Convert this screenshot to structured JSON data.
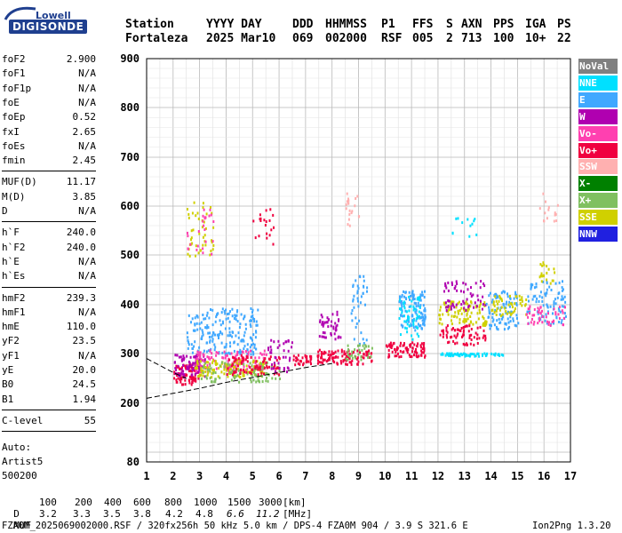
{
  "logo": {
    "top": "Lowell",
    "main": "DIGISONDE"
  },
  "header": {
    "labels": [
      "Station",
      "YYYY DAY",
      "DDD",
      "HHMMSS",
      "P1",
      "FFS",
      "S",
      "AXN",
      "PPS",
      "IGA",
      "PS"
    ],
    "values": [
      "Fortaleza",
      "2025 Mar10",
      "069",
      "002000",
      "RSF",
      "005",
      "2",
      "713",
      "100",
      "10+",
      "22"
    ]
  },
  "params": {
    "group1": [
      {
        "label": "foF2",
        "value": "2.900"
      },
      {
        "label": "foF1",
        "value": "N/A"
      },
      {
        "label": "foF1p",
        "value": "N/A"
      },
      {
        "label": "foE",
        "value": "N/A"
      },
      {
        "label": "foEp",
        "value": "0.52"
      },
      {
        "label": "fxI",
        "value": "2.65"
      },
      {
        "label": "foEs",
        "value": "N/A"
      },
      {
        "label": "fmin",
        "value": "2.45"
      }
    ],
    "group2": [
      {
        "label": "MUF(D)",
        "value": "11.17"
      },
      {
        "label": "M(D)",
        "value": "3.85"
      },
      {
        "label": "D",
        "value": "N/A"
      }
    ],
    "group3": [
      {
        "label": "h`F",
        "value": "240.0"
      },
      {
        "label": "h`F2",
        "value": "240.0"
      },
      {
        "label": "h`E",
        "value": "N/A"
      },
      {
        "label": "h`Es",
        "value": "N/A"
      }
    ],
    "group4": [
      {
        "label": "hmF2",
        "value": "239.3"
      },
      {
        "label": "hmF1",
        "value": "N/A"
      },
      {
        "label": "hmE",
        "value": "110.0"
      },
      {
        "label": "yF2",
        "value": "23.5"
      },
      {
        "label": "yF1",
        "value": "N/A"
      },
      {
        "label": "yE",
        "value": "20.0"
      },
      {
        "label": "B0",
        "value": "24.5"
      },
      {
        "label": "B1",
        "value": "1.94"
      }
    ],
    "group5": [
      {
        "label": "C-level",
        "value": "55"
      }
    ],
    "auto": [
      "Auto:",
      "Artist5",
      "500200"
    ]
  },
  "footer": {
    "d_label": "D",
    "d_values": [
      "100",
      "200",
      "400",
      "600",
      "800",
      "1000",
      "1500",
      "3000",
      "[km]"
    ],
    "muf_label": "MUF",
    "muf_values": [
      "3.2",
      "3.3",
      "3.5",
      "3.8",
      "4.2",
      "4.8",
      "6.6",
      "11.2",
      "[MHz]"
    ],
    "file_line": "FZA0M_2025069002000.RSF / 320fx256h 50 kHz 5.0 km / DPS-4 FZA0M 904 / 3.9 S 321.6 E",
    "version": "Ion2Png 1.3.20"
  },
  "legend": [
    {
      "label": "NoVal",
      "color": "#808080"
    },
    {
      "label": "NNE",
      "color": "#00e0ff"
    },
    {
      "label": "E",
      "color": "#40a8ff"
    },
    {
      "label": "W",
      "color": "#b000b0"
    },
    {
      "label": "Vo-",
      "color": "#ff40b0"
    },
    {
      "label": "Vo+",
      "color": "#f00040"
    },
    {
      "label": "SSW",
      "color": "#ffb0b0"
    },
    {
      "label": "X-",
      "color": "#008000"
    },
    {
      "label": "X+",
      "color": "#80c060"
    },
    {
      "label": "SSE",
      "color": "#d0d000"
    },
    {
      "label": "NNW",
      "color": "#2020e0"
    }
  ],
  "chart_data": {
    "type": "scatter",
    "x_ticks": [
      "1",
      "2",
      "3",
      "4",
      "5",
      "6",
      "7",
      "8",
      "9",
      "10",
      "11",
      "12",
      "13",
      "14",
      "15",
      "16",
      "17"
    ],
    "y_ticks": [
      "80",
      "200",
      "300",
      "400",
      "500",
      "600",
      "700",
      "800",
      "900"
    ],
    "xlim": [
      1,
      17
    ],
    "ylim": [
      80,
      900
    ],
    "x_unit": "MHz",
    "y_unit": "km",
    "grid": true,
    "legend_placement": "right",
    "clusters": [
      {
        "f": [
          2.0,
          3.0
        ],
        "h": [
          240,
          280
        ],
        "color": "#f00040",
        "n": 90
      },
      {
        "f": [
          2.0,
          3.2
        ],
        "h": [
          255,
          300
        ],
        "color": "#b000b0",
        "n": 80
      },
      {
        "f": [
          2.5,
          5.2
        ],
        "h": [
          300,
          395
        ],
        "color": "#40a8ff",
        "n": 200
      },
      {
        "f": [
          2.8,
          5.5
        ],
        "h": [
          265,
          310
        ],
        "color": "#ff40b0",
        "n": 130
      },
      {
        "f": [
          2.8,
          5.5
        ],
        "h": [
          255,
          290
        ],
        "color": "#d0d000",
        "n": 120
      },
      {
        "f": [
          3.0,
          6.0
        ],
        "h": [
          245,
          285
        ],
        "color": "#80c060",
        "n": 90
      },
      {
        "f": [
          4.0,
          6.0
        ],
        "h": [
          260,
          300
        ],
        "color": "#f00040",
        "n": 80
      },
      {
        "f": [
          5.5,
          6.5
        ],
        "h": [
          265,
          330
        ],
        "color": "#b000b0",
        "n": 40
      },
      {
        "f": [
          6.5,
          7.2
        ],
        "h": [
          280,
          300
        ],
        "color": "#f00040",
        "n": 30
      },
      {
        "f": [
          7.4,
          9.5
        ],
        "h": [
          280,
          310
        ],
        "color": "#f00040",
        "n": 110
      },
      {
        "f": [
          7.5,
          8.3
        ],
        "h": [
          330,
          390
        ],
        "color": "#b000b0",
        "n": 45
      },
      {
        "f": [
          8.7,
          9.3
        ],
        "h": [
          320,
          460
        ],
        "color": "#40a8ff",
        "n": 40
      },
      {
        "f": [
          8.5,
          9.5
        ],
        "h": [
          290,
          320
        ],
        "color": "#80c060",
        "n": 30
      },
      {
        "f": [
          10.0,
          11.5
        ],
        "h": [
          295,
          325
        ],
        "color": "#f00040",
        "n": 80
      },
      {
        "f": [
          10.5,
          11.5
        ],
        "h": [
          350,
          430
        ],
        "color": "#40a8ff",
        "n": 110
      },
      {
        "f": [
          10.5,
          11.3
        ],
        "h": [
          330,
          420
        ],
        "color": "#00e0ff",
        "n": 50
      },
      {
        "f": [
          12.0,
          13.8
        ],
        "h": [
          360,
          410
        ],
        "color": "#d0d000",
        "n": 100
      },
      {
        "f": [
          12.0,
          13.8
        ],
        "h": [
          320,
          360
        ],
        "color": "#f00040",
        "n": 70
      },
      {
        "f": [
          12.2,
          13.8
        ],
        "h": [
          390,
          450
        ],
        "color": "#b000b0",
        "n": 60
      },
      {
        "f": [
          12.0,
          14.5
        ],
        "h": [
          297,
          303
        ],
        "color": "#00e0ff",
        "n": 60
      },
      {
        "f": [
          13.8,
          15.0
        ],
        "h": [
          350,
          430
        ],
        "color": "#40a8ff",
        "n": 90
      },
      {
        "f": [
          14.0,
          15.3
        ],
        "h": [
          380,
          420
        ],
        "color": "#d0d000",
        "n": 50
      },
      {
        "f": [
          15.3,
          16.8
        ],
        "h": [
          360,
          450
        ],
        "color": "#40a8ff",
        "n": 90
      },
      {
        "f": [
          15.3,
          16.8
        ],
        "h": [
          360,
          400
        ],
        "color": "#ff40b0",
        "n": 50
      },
      {
        "f": [
          15.8,
          16.5
        ],
        "h": [
          440,
          490
        ],
        "color": "#d0d000",
        "n": 20
      },
      {
        "f": [
          2.5,
          3.5
        ],
        "h": [
          500,
          610
        ],
        "color": "#d0d000",
        "n": 45
      },
      {
        "f": [
          2.5,
          3.5
        ],
        "h": [
          500,
          600
        ],
        "color": "#ff40b0",
        "n": 25
      },
      {
        "f": [
          5.0,
          5.8
        ],
        "h": [
          520,
          600
        ],
        "color": "#f00040",
        "n": 20
      },
      {
        "f": [
          8.5,
          9.0
        ],
        "h": [
          560,
          630
        ],
        "color": "#ffb0b0",
        "n": 20
      },
      {
        "f": [
          12.5,
          13.5
        ],
        "h": [
          540,
          580
        ],
        "color": "#00e0ff",
        "n": 12
      },
      {
        "f": [
          15.8,
          16.5
        ],
        "h": [
          570,
          630
        ],
        "color": "#ffb0b0",
        "n": 15
      }
    ],
    "trace": [
      [
        1.0,
        210
      ],
      [
        2.0,
        220
      ],
      [
        3.0,
        230
      ],
      [
        4.0,
        242
      ],
      [
        5.0,
        252
      ],
      [
        6.0,
        262
      ],
      [
        7.0,
        272
      ],
      [
        8.0,
        280
      ]
    ],
    "trace_upper": [
      [
        1.0,
        290
      ],
      [
        2.0,
        262
      ],
      [
        2.5,
        250
      ]
    ]
  }
}
